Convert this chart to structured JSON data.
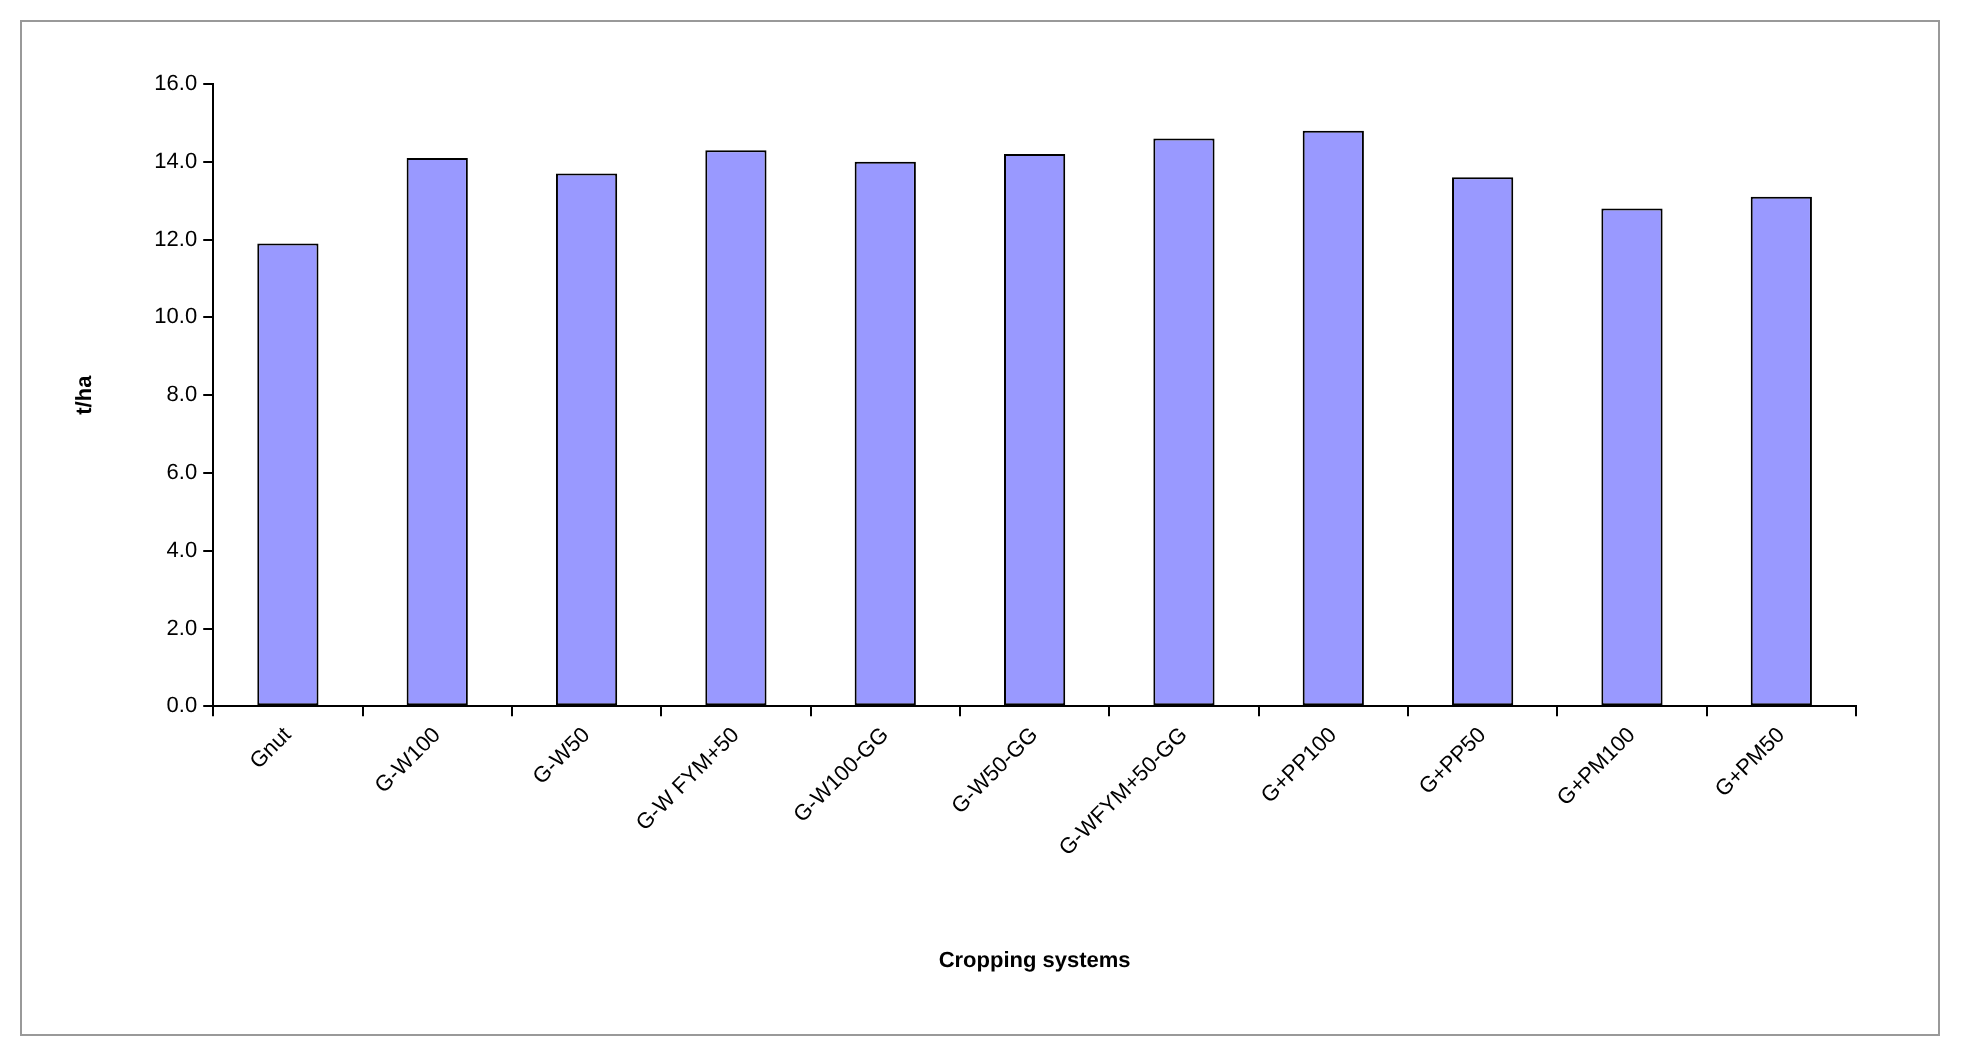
{
  "chart_data": {
    "type": "bar",
    "xlabel": "Cropping systems",
    "ylabel": "t/ha",
    "categories": [
      "Gnut",
      "G-W100",
      "G-W50",
      "G-W FYM+50",
      "G-W100-GG",
      "G-W50-GG",
      "G-WFYM+50-GG",
      "G+PP100",
      "G+PP50",
      "G+PM100",
      "G+PM50"
    ],
    "values": [
      11.9,
      14.1,
      13.7,
      14.3,
      14.0,
      14.2,
      14.6,
      14.8,
      13.6,
      12.8,
      13.1
    ],
    "color": "#9999ff",
    "ylim": [
      0,
      16
    ],
    "yticks": [
      {
        "value": 0,
        "label": "0.0"
      },
      {
        "value": 2,
        "label": "2.0"
      },
      {
        "value": 4,
        "label": "4.0"
      },
      {
        "value": 6,
        "label": "6.0"
      },
      {
        "value": 8,
        "label": "8.0"
      },
      {
        "value": 10,
        "label": "10.0"
      },
      {
        "value": 12,
        "label": "12.0"
      },
      {
        "value": 14,
        "label": "14.0"
      },
      {
        "value": 16,
        "label": "16.0"
      }
    ],
    "grid": false,
    "legend": false
  }
}
